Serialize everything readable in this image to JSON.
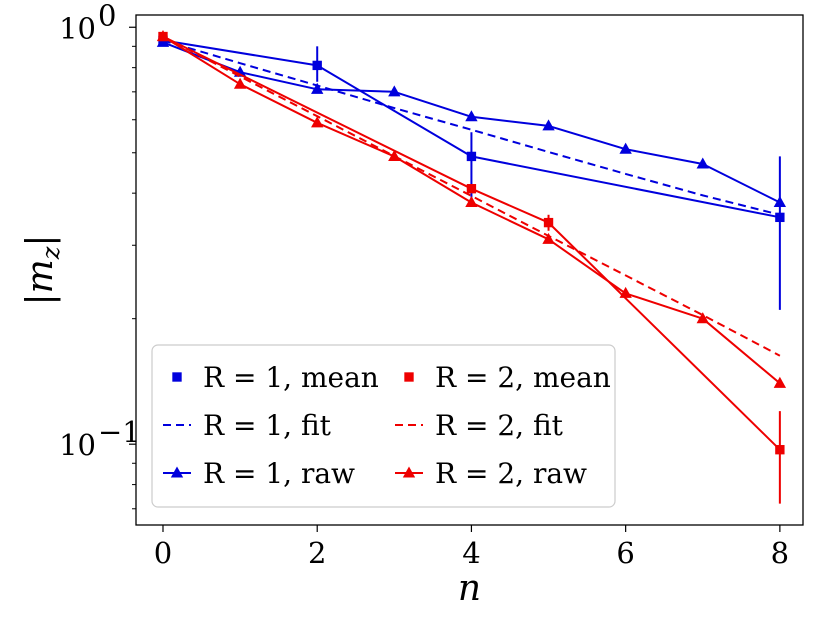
{
  "chart_data": {
    "type": "line",
    "xlabel": "n",
    "ylabel": "|m_z|",
    "xlim": [
      -0.35,
      8.3
    ],
    "ylim": [
      0.064,
      1.07
    ],
    "yscale": "log",
    "x_ticks": [
      "0",
      "2",
      "4",
      "6",
      "8"
    ],
    "y_ticks": [
      {
        "value": 1.0,
        "base": "10",
        "exp": "0"
      },
      {
        "value": 0.1,
        "base": "10",
        "exp": "−1"
      }
    ],
    "grid": false,
    "legend_position": "lower-left",
    "series": [
      {
        "name": "R = 1, mean",
        "color": "#0000dd",
        "style": "solid",
        "marker": "square",
        "x": [
          0,
          2,
          4,
          8
        ],
        "y": [
          0.93,
          0.81,
          0.49,
          0.35
        ],
        "err_low": [
          null,
          0.74,
          0.39,
          0.21
        ],
        "err_high": [
          null,
          0.9,
          0.56,
          0.49
        ]
      },
      {
        "name": "R = 1, fit",
        "color": "#0000dd",
        "style": "dashed",
        "marker": "none",
        "x": [
          0,
          1,
          2,
          3,
          4,
          5,
          6,
          7,
          8
        ],
        "y": [
          0.93,
          0.82,
          0.725,
          0.64,
          0.568,
          0.502,
          0.445,
          0.395,
          0.355
        ]
      },
      {
        "name": "R = 1, raw",
        "color": "#0000dd",
        "style": "solid",
        "marker": "triangle",
        "x": [
          0,
          1,
          2,
          3,
          4,
          5,
          6,
          7,
          8
        ],
        "y": [
          0.92,
          0.78,
          0.71,
          0.7,
          0.61,
          0.58,
          0.51,
          0.47,
          0.38
        ]
      },
      {
        "name": "R = 2, mean",
        "color": "#ee0000",
        "style": "solid",
        "marker": "square",
        "x": [
          0,
          4,
          5,
          8
        ],
        "y": [
          0.95,
          0.41,
          0.34,
          0.097
        ],
        "err_low": [
          null,
          null,
          0.325,
          0.072
        ],
        "err_high": [
          null,
          null,
          0.355,
          0.12
        ]
      },
      {
        "name": "R = 2, fit",
        "color": "#ee0000",
        "style": "dashed",
        "marker": "none",
        "x": [
          0,
          1,
          2,
          3,
          4,
          5,
          6,
          7,
          8
        ],
        "y": [
          0.95,
          0.762,
          0.612,
          0.491,
          0.394,
          0.316,
          0.254,
          0.204,
          0.163
        ]
      },
      {
        "name": "R = 2, raw",
        "color": "#ee0000",
        "style": "solid",
        "marker": "triangle",
        "x": [
          0,
          1,
          2,
          3,
          4,
          5,
          6,
          7,
          8
        ],
        "y": [
          0.95,
          0.73,
          0.59,
          0.49,
          0.38,
          0.31,
          0.23,
          0.2,
          0.14
        ]
      }
    ]
  }
}
